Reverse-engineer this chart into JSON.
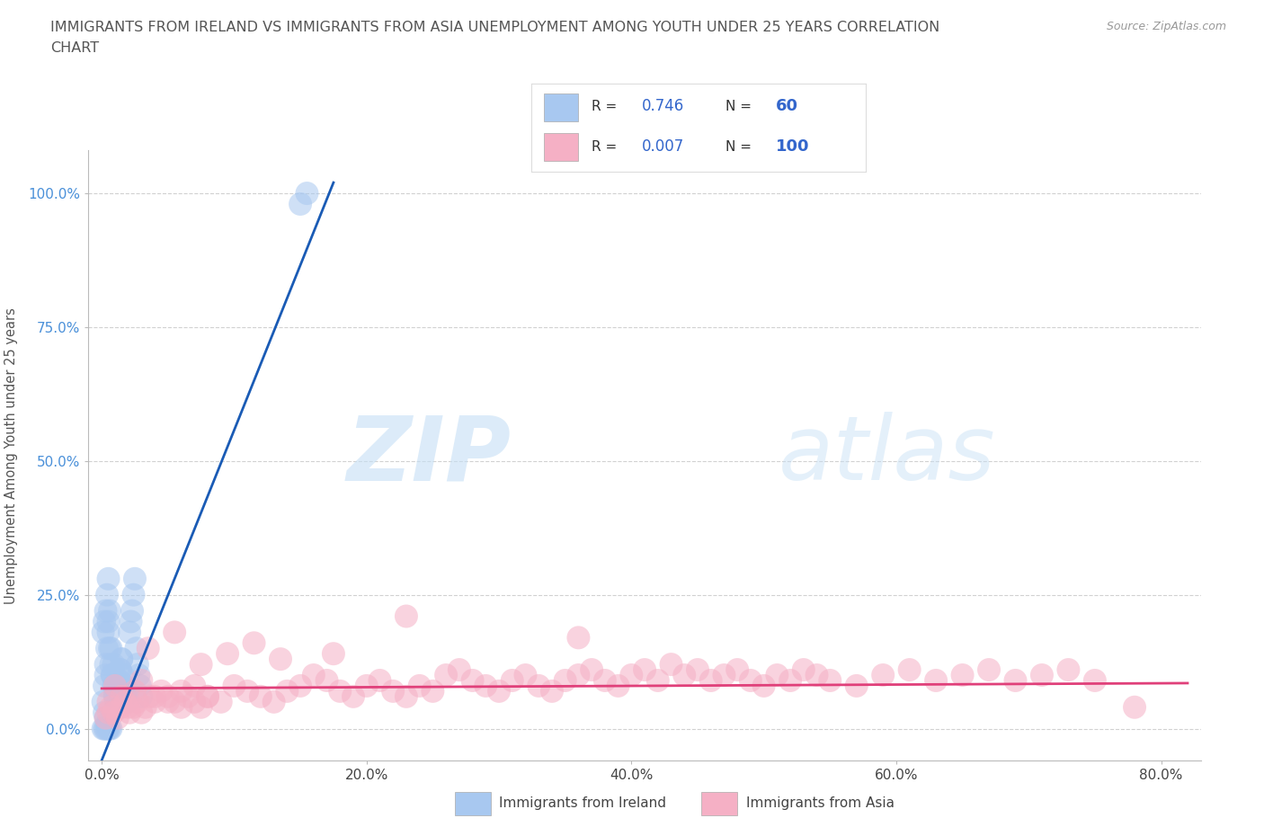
{
  "title_line1": "IMMIGRANTS FROM IRELAND VS IMMIGRANTS FROM ASIA UNEMPLOYMENT AMONG YOUTH UNDER 25 YEARS CORRELATION",
  "title_line2": "CHART",
  "source_text": "Source: ZipAtlas.com",
  "ylabel": "Unemployment Among Youth under 25 years",
  "xlabel_ticks": [
    "0.0%",
    "20.0%",
    "40.0%",
    "60.0%",
    "80.0%"
  ],
  "xlabel_vals": [
    0.0,
    0.2,
    0.4,
    0.6,
    0.8
  ],
  "ylabel_ticks": [
    "0.0%",
    "25.0%",
    "50.0%",
    "75.0%",
    "100.0%"
  ],
  "ylabel_vals": [
    0.0,
    0.25,
    0.5,
    0.75,
    1.0
  ],
  "xlim": [
    -0.01,
    0.83
  ],
  "ylim": [
    -0.06,
    1.08
  ],
  "legend_ireland": "Immigrants from Ireland",
  "legend_asia": "Immigrants from Asia",
  "ireland_R": "0.746",
  "ireland_N": "60",
  "asia_R": "0.007",
  "asia_N": "100",
  "ireland_color": "#a8c8f0",
  "ireland_line_color": "#1a5bb5",
  "asia_color": "#f5b0c5",
  "asia_line_color": "#e0407a",
  "watermark_zip": "ZIP",
  "watermark_atlas": "atlas",
  "background_color": "#ffffff",
  "grid_color": "#cccccc",
  "title_color": "#555555",
  "ireland_x": [
    0.001,
    0.002,
    0.003,
    0.003,
    0.004,
    0.005,
    0.005,
    0.006,
    0.007,
    0.008,
    0.009,
    0.01,
    0.01,
    0.011,
    0.012,
    0.013,
    0.014,
    0.015,
    0.016,
    0.017,
    0.018,
    0.019,
    0.02,
    0.021,
    0.022,
    0.023,
    0.024,
    0.025,
    0.026,
    0.027,
    0.028,
    0.029,
    0.03,
    0.001,
    0.002,
    0.003,
    0.004,
    0.005,
    0.006,
    0.007,
    0.008,
    0.009,
    0.01,
    0.011,
    0.012,
    0.013,
    0.014,
    0.015,
    0.002,
    0.003,
    0.004,
    0.005,
    0.006,
    0.007,
    0.15,
    0.155,
    0.001,
    0.002,
    0.003,
    0.004
  ],
  "ireland_y": [
    0.05,
    0.08,
    0.1,
    0.12,
    0.15,
    0.18,
    0.2,
    0.22,
    0.15,
    0.1,
    0.12,
    0.08,
    0.06,
    0.05,
    0.07,
    0.09,
    0.11,
    0.13,
    0.1,
    0.08,
    0.06,
    0.05,
    0.07,
    0.18,
    0.2,
    0.22,
    0.25,
    0.28,
    0.15,
    0.12,
    0.1,
    0.08,
    0.06,
    0.18,
    0.2,
    0.22,
    0.25,
    0.28,
    0.15,
    0.12,
    0.1,
    0.08,
    0.06,
    0.05,
    0.07,
    0.09,
    0.11,
    0.13,
    0.03,
    0.02,
    0.01,
    0.0,
    0.0,
    0.0,
    0.98,
    1.0,
    0.0,
    0.0,
    0.0,
    0.0
  ],
  "asia_x": [
    0.005,
    0.01,
    0.015,
    0.02,
    0.025,
    0.03,
    0.04,
    0.05,
    0.06,
    0.07,
    0.08,
    0.09,
    0.1,
    0.11,
    0.12,
    0.13,
    0.14,
    0.15,
    0.16,
    0.17,
    0.18,
    0.19,
    0.2,
    0.21,
    0.22,
    0.23,
    0.24,
    0.25,
    0.26,
    0.27,
    0.28,
    0.29,
    0.3,
    0.31,
    0.32,
    0.33,
    0.34,
    0.35,
    0.36,
    0.37,
    0.38,
    0.39,
    0.4,
    0.41,
    0.42,
    0.43,
    0.44,
    0.45,
    0.46,
    0.47,
    0.48,
    0.49,
    0.5,
    0.51,
    0.52,
    0.53,
    0.54,
    0.55,
    0.57,
    0.59,
    0.61,
    0.63,
    0.65,
    0.67,
    0.69,
    0.71,
    0.73,
    0.75,
    0.003,
    0.005,
    0.007,
    0.009,
    0.012,
    0.015,
    0.018,
    0.021,
    0.024,
    0.027,
    0.03,
    0.033,
    0.036,
    0.04,
    0.045,
    0.05,
    0.055,
    0.06,
    0.065,
    0.07,
    0.075,
    0.08,
    0.035,
    0.055,
    0.075,
    0.095,
    0.115,
    0.135,
    0.36,
    0.175,
    0.23,
    0.78
  ],
  "asia_y": [
    0.05,
    0.08,
    0.06,
    0.04,
    0.07,
    0.09,
    0.06,
    0.05,
    0.07,
    0.08,
    0.06,
    0.05,
    0.08,
    0.07,
    0.06,
    0.05,
    0.07,
    0.08,
    0.1,
    0.09,
    0.07,
    0.06,
    0.08,
    0.09,
    0.07,
    0.06,
    0.08,
    0.07,
    0.1,
    0.11,
    0.09,
    0.08,
    0.07,
    0.09,
    0.1,
    0.08,
    0.07,
    0.09,
    0.1,
    0.11,
    0.09,
    0.08,
    0.1,
    0.11,
    0.09,
    0.12,
    0.1,
    0.11,
    0.09,
    0.1,
    0.11,
    0.09,
    0.08,
    0.1,
    0.09,
    0.11,
    0.1,
    0.09,
    0.08,
    0.1,
    0.11,
    0.09,
    0.1,
    0.11,
    0.09,
    0.1,
    0.11,
    0.09,
    0.02,
    0.03,
    0.04,
    0.03,
    0.02,
    0.04,
    0.05,
    0.03,
    0.04,
    0.05,
    0.03,
    0.04,
    0.06,
    0.05,
    0.07,
    0.06,
    0.05,
    0.04,
    0.06,
    0.05,
    0.04,
    0.06,
    0.15,
    0.18,
    0.12,
    0.14,
    0.16,
    0.13,
    0.17,
    0.14,
    0.21,
    0.04
  ]
}
